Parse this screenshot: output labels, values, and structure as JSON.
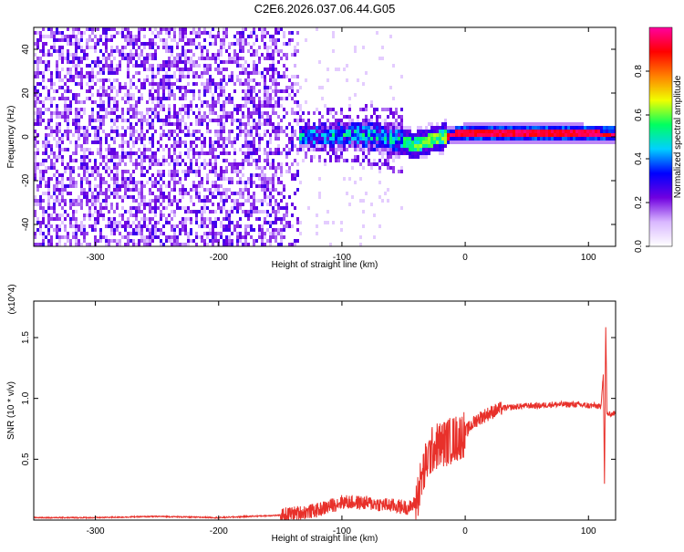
{
  "title": "C2E6.2026.037.06.44.G05",
  "chart_data": [
    {
      "type": "heatmap",
      "xlabel": "Height of straight line (km)",
      "ylabel": "Frequency (Hz)",
      "xlim": [
        -350,
        122
      ],
      "ylim": [
        -50,
        50
      ],
      "xticks": [
        -300,
        -200,
        -100,
        0,
        100
      ],
      "yticks": [
        -40,
        -20,
        0,
        20,
        40
      ],
      "colorbar": {
        "label": "Normalized spectral amplitude",
        "range": [
          0,
          1
        ],
        "ticks": [
          "0.0",
          "0.2",
          "0.4",
          "0.6",
          "0.8"
        ],
        "colors": [
          "#ffffff",
          "#d9b8ff",
          "#7000e0",
          "#0000ff",
          "#00d0ff",
          "#00ff60",
          "#f0ff00",
          "#ff8000",
          "#ff0000",
          "#ff00a0"
        ]
      },
      "ridge": {
        "x": [
          -130,
          -100,
          -75,
          -50,
          -42,
          -35,
          -25,
          -15,
          0,
          30,
          60,
          90,
          110,
          122
        ],
        "y": [
          0,
          1,
          0.5,
          -2,
          -4,
          -3,
          -1,
          0.5,
          1.5,
          1.5,
          1.5,
          1.5,
          1,
          1
        ]
      }
    },
    {
      "type": "line",
      "xlabel": "Height of straight line (km)",
      "ylabel": "SNR (10 * v/v)",
      "ymultiplier": "(x10^4)",
      "xlim": [
        -350,
        122
      ],
      "ylim": [
        0,
        1.8
      ],
      "xticks": [
        -300,
        -200,
        -100,
        0,
        100
      ],
      "yticks": [
        "0.5",
        "1.0",
        "1.5"
      ],
      "yticks_values": [
        0.5,
        1.0,
        1.5
      ],
      "series": [
        {
          "color": "#e8302a",
          "x": [
            -350,
            -300,
            -250,
            -200,
            -150,
            -120,
            -100,
            -80,
            -60,
            -45,
            -40,
            -35,
            -30,
            -25,
            -20,
            -15,
            -10,
            -5,
            0,
            5,
            10,
            20,
            30,
            40,
            50,
            60,
            70,
            80,
            90,
            100,
            105,
            110,
            112,
            113,
            114,
            115,
            118,
            122
          ],
          "y": [
            0.02,
            0.02,
            0.03,
            0.02,
            0.04,
            0.08,
            0.15,
            0.14,
            0.12,
            0.1,
            0.15,
            0.35,
            0.52,
            0.6,
            0.62,
            0.64,
            0.66,
            0.68,
            0.72,
            0.78,
            0.83,
            0.88,
            0.92,
            0.93,
            0.94,
            0.94,
            0.95,
            0.95,
            0.95,
            0.94,
            0.94,
            0.93,
            1.2,
            0.3,
            1.6,
            0.87,
            0.87,
            0.88
          ]
        }
      ]
    }
  ]
}
